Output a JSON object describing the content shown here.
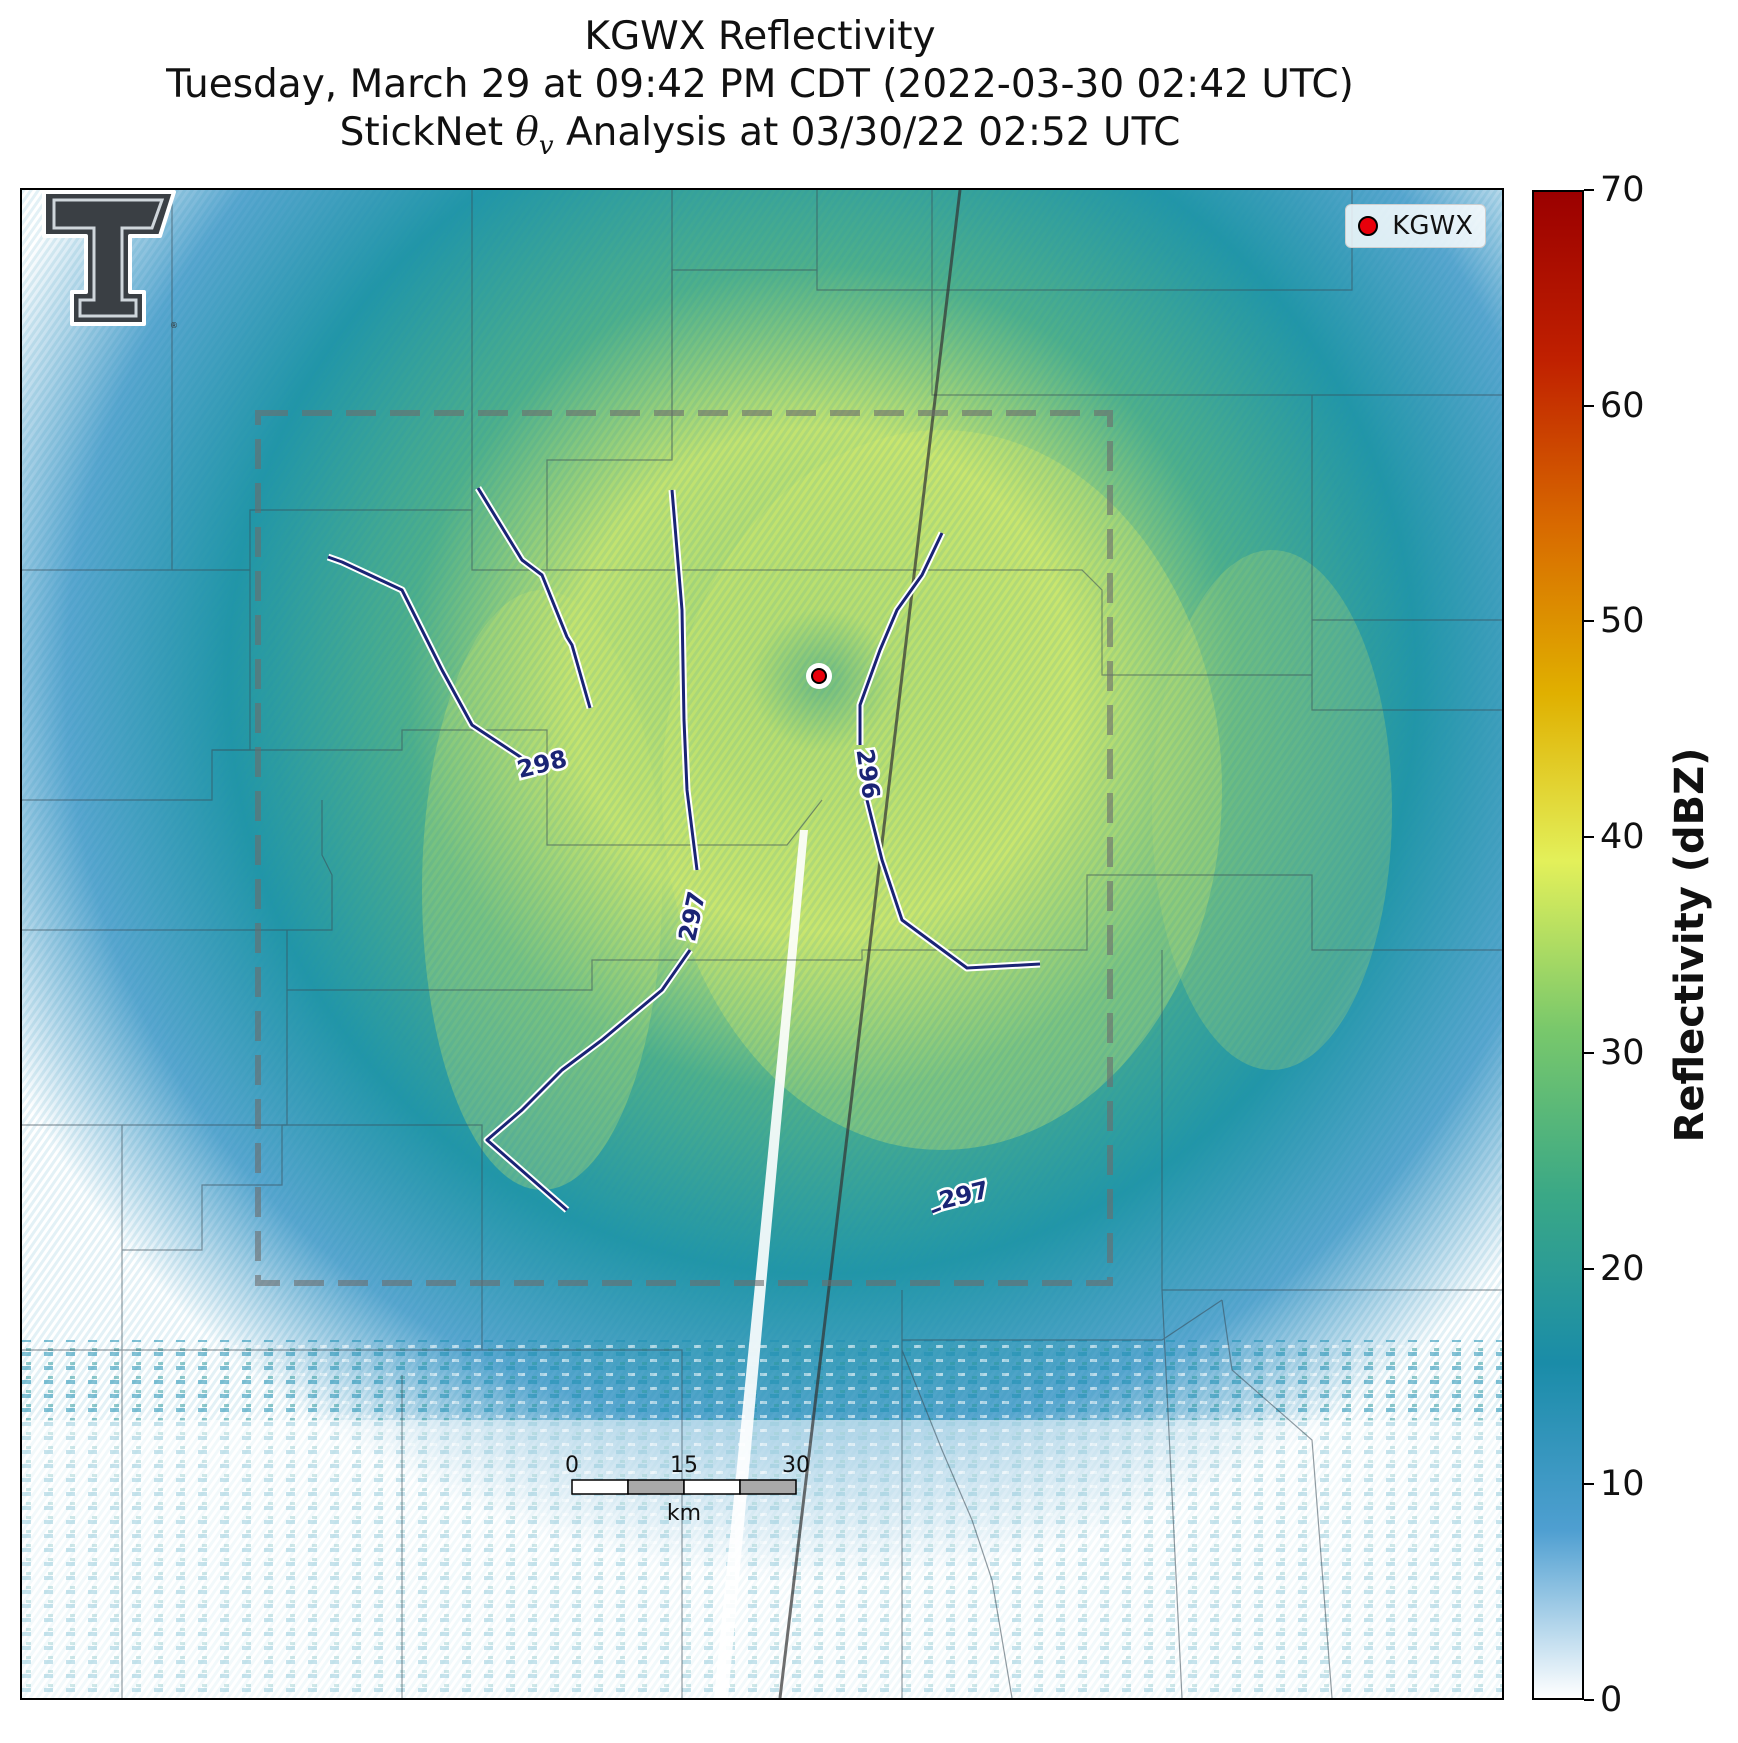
{
  "title": {
    "line1": "KGWX Reflectivity",
    "line2": "Tuesday, March 29 at 09:42 PM CDT (2022-03-30 02:42 UTC)",
    "line3_pre": "StickNet ",
    "line3_post": " Analysis at 03/30/22 02:52 UTC"
  },
  "legend": {
    "label": "KGWX",
    "marker_color": "#e8000b"
  },
  "colorbar": {
    "label": "Reflectivity (dBZ)",
    "ticks": [
      "0",
      "10",
      "20",
      "30",
      "40",
      "50",
      "60",
      "70"
    ],
    "min": 0,
    "max": 70,
    "stops": [
      "#ffffff",
      "#4f9fd1",
      "#1a8ca8",
      "#3aa886",
      "#79c86b",
      "#e3f05a",
      "#e0b000",
      "#d86a00",
      "#c02000",
      "#9b0000"
    ]
  },
  "contours": {
    "labels": [
      "298",
      "297",
      "296",
      "297"
    ],
    "color": "#1a2475"
  },
  "scale_bar": {
    "ticks": [
      "0",
      "15",
      "30"
    ],
    "unit": "km"
  },
  "logo": {
    "letter": "T"
  }
}
